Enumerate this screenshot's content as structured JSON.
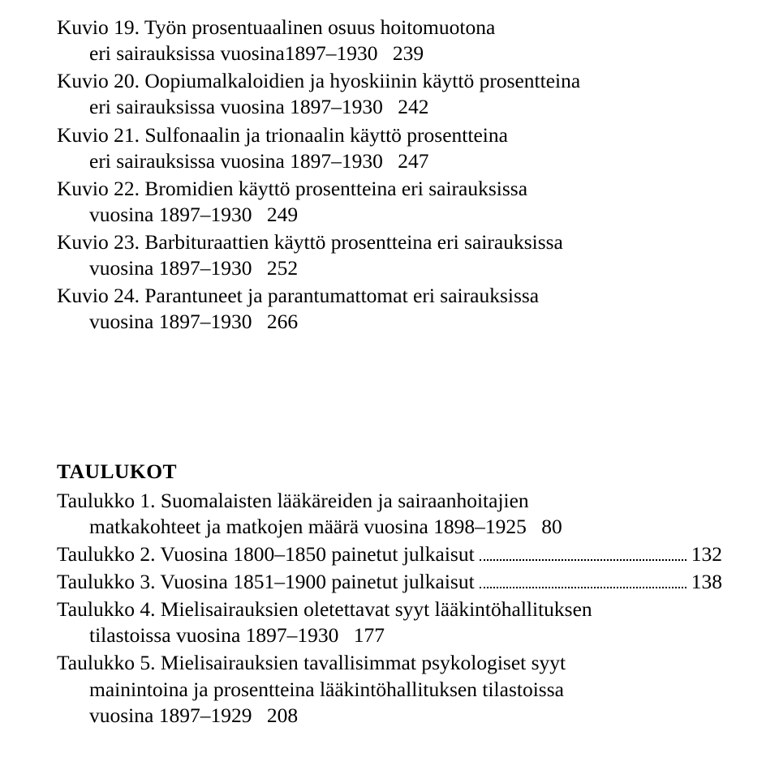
{
  "kuvio": [
    {
      "prefix": "Kuvio 19. Työn prosentuaalinen osuus hoitomuotona",
      "cont": "eri sairauksissa vuosina1897–1930",
      "page": "239"
    },
    {
      "prefix": "Kuvio 20. Oopiumalkaloidien ja hyoskiinin käyttö prosentteina",
      "cont": "eri sairauksissa vuosina 1897–1930",
      "page": "242"
    },
    {
      "prefix": "Kuvio 21. Sulfonaalin ja trionaalin käyttö prosentteina",
      "cont": "eri sairauksissa vuosina 1897–1930",
      "page": "247"
    },
    {
      "prefix": "Kuvio 22. Bromidien käyttö prosentteina eri sairauksissa",
      "cont": "vuosina 1897–1930",
      "page": "249"
    },
    {
      "prefix": "Kuvio 23. Barbituraattien käyttö prosentteina eri sairauksissa",
      "cont": "vuosina 1897–1930",
      "page": "252"
    },
    {
      "prefix": "Kuvio 24. Parantuneet ja parantumattomat eri sairauksissa",
      "cont": "vuosina 1897–1930",
      "page": "266"
    }
  ],
  "taulukot_title": "TAULUKOT",
  "taulukko": [
    {
      "prefix": "Taulukko 1. Suomalaisten lääkäreiden ja sairaanhoitajien",
      "cont": "matkakohteet ja matkojen määrä vuosina 1898–1925",
      "page": "80"
    },
    {
      "single": "Taulukko 2. Vuosina 1800–1850 painetut julkaisut",
      "page": "132"
    },
    {
      "single": "Taulukko 3. Vuosina 1851–1900 painetut julkaisut",
      "page": "138"
    },
    {
      "prefix": "Taulukko 4. Mielisairauksien oletettavat syyt lääkintöhallituksen",
      "cont": "tilastoissa vuosina 1897–1930",
      "page": "177"
    },
    {
      "prefix": "Taulukko 5. Mielisairauksien tavallisimmat psykologiset syyt",
      "mid": "mainintoina ja prosentteina lääkintöhallituksen tilastoissa",
      "cont": "vuosina 1897–1929",
      "page": "208"
    }
  ]
}
